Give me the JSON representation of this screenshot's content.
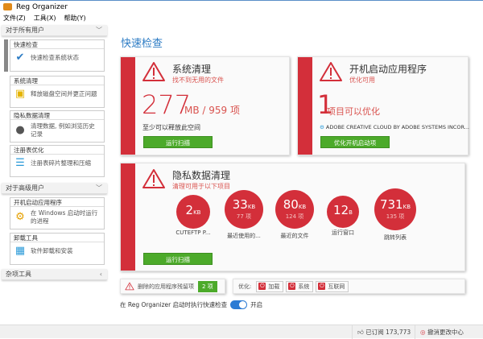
{
  "window": {
    "title": "Reg Organizer"
  },
  "menu": [
    "文件(Z)",
    "工具(X)",
    "帮助(Y)"
  ],
  "sidebar": {
    "group_all": "对于所有用户",
    "group_adv": "对于高级用户",
    "group_misc": "杂项工具",
    "items": [
      {
        "title": "快速检查",
        "desc": "快速检查系统状态",
        "icon": "magnifier-check-icon"
      },
      {
        "title": "系统清理",
        "desc": "释放磁盘空间并更正问题",
        "icon": "monitor-broom-icon"
      },
      {
        "title": "隐私数据清理",
        "desc": "清理数据, 例如浏览历史记录",
        "icon": "privacy-broom-icon"
      },
      {
        "title": "注册表优化",
        "desc": "注册表碎片整理和压缩",
        "icon": "registry-icon"
      },
      {
        "title": "开机启动应用程序",
        "desc": "在 Windows 启动时运行的进程",
        "icon": "startup-gear-icon"
      },
      {
        "title": "卸载工具",
        "desc": "软件卸载和安装",
        "icon": "uninstall-box-icon"
      }
    ]
  },
  "main": {
    "title": "快速检查",
    "cleanup": {
      "title": "系统清理",
      "subtitle": "找不到无用的文件",
      "big": "277",
      "unit": "MB / 959 项",
      "note": "至少可以释放此空间",
      "button": "运行扫描"
    },
    "startup": {
      "title": "开机启动应用程序",
      "subtitle": "优化可用",
      "big": "1",
      "unit": "项目可以优化",
      "app": "ADOBE CREATIVE CLOUD BY ADOBE SYSTEMS INCOR...",
      "button": "优化开机启动项"
    },
    "privacy": {
      "title": "隐私数据清理",
      "subtitle": "清理可用于以下项目",
      "button": "运行扫描",
      "items": [
        {
          "value": "2",
          "unit": "KB",
          "count": "",
          "label": "CUTEFTP P..."
        },
        {
          "value": "33",
          "unit": "KB",
          "count": "77 项",
          "label": "最近使用的..."
        },
        {
          "value": "80",
          "unit": "KB",
          "count": "124 项",
          "label": "最近的文件"
        },
        {
          "value": "12",
          "unit": "B",
          "count": "",
          "label": "运行窗口"
        },
        {
          "value": "731",
          "unit": "KB",
          "count": "135 项",
          "label": "跳转列表"
        }
      ]
    },
    "leftovers": {
      "label": "删除的应用程序残留项",
      "count": "2 项"
    },
    "optimize": {
      "label": "优化:",
      "buttons": [
        "加载",
        "系统",
        "互联网"
      ]
    },
    "autocheck": {
      "label": "在 Reg Organizer 启动时执行快速检查",
      "state": "开启",
      "enabled": true
    }
  },
  "status": {
    "subscribed": "已订阅 173,773",
    "undo": "撤消更改中心"
  },
  "colors": {
    "accent": "#d32f3a",
    "green": "#4caa2a",
    "blue": "#2b7bc4"
  }
}
